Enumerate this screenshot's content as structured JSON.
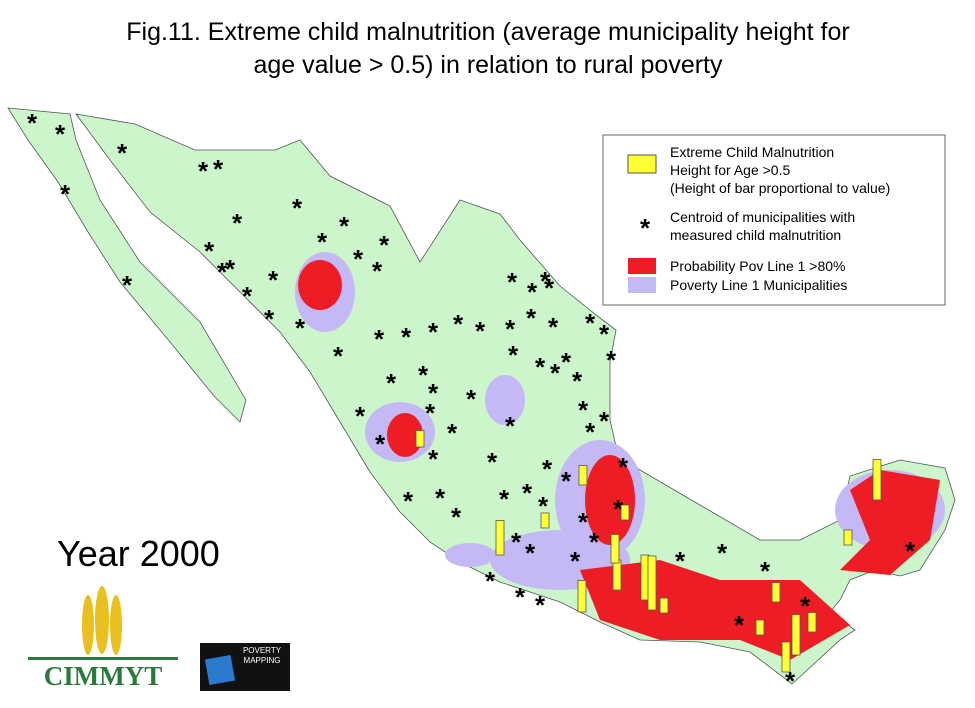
{
  "title_lines": [
    "Fig.11. Extreme child malnutrition (average municipality height for",
    "age value > 0.5) in relation to rural poverty"
  ],
  "legend": {
    "bar_lines": [
      "Extreme Child Malnutrition",
      "Height for Age >0.5",
      "(Height of bar proportional to value)"
    ],
    "centroid_lines": [
      "Centroid of municipalities with",
      "measured child malnutrition"
    ],
    "red": "Probability Pov Line 1 >80%",
    "purple": "Poverty Line 1 Municipalities"
  },
  "year": "Year 2000",
  "logos": {
    "cimmyt": "CIMMYT",
    "poverty_mapping": [
      "POVERTY",
      "MAPPING"
    ]
  },
  "malnutrition_bars": [
    0.55,
    0.65,
    1.15,
    0.5,
    0.5,
    1.0,
    1.5,
    1.8,
    0.5,
    1.05,
    0.95,
    1.35,
    0.5,
    0.65,
    1.0,
    1.35,
    0.5,
    0.65
  ]
}
